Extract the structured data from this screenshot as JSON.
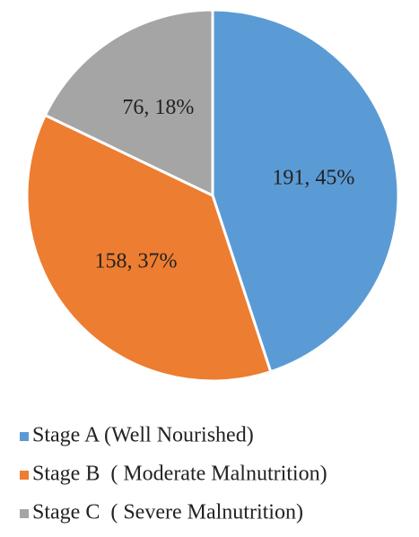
{
  "chart_data": {
    "type": "pie",
    "categories": [
      "Stage A (Well Nourished)",
      "Stage B  ( Moderate Malnutrition)",
      "Stage C  ( Severe Malnutrition)"
    ],
    "values": [
      191,
      158,
      76
    ],
    "value_labels": [
      "191, 45%",
      "158, 37%",
      "76, 18%"
    ],
    "colors": [
      "#5b9bd5",
      "#ed7d31",
      "#a5a5a5"
    ],
    "legend": "bottom"
  }
}
